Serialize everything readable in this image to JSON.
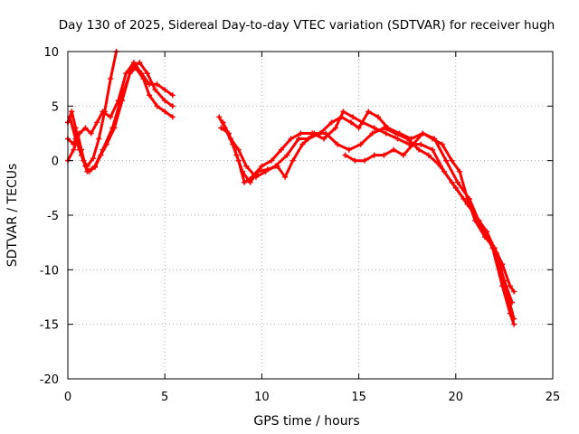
{
  "chart_data": {
    "type": "scatter",
    "title": "Day 130 of 2025, Sidereal Day-to-day VTEC variation (SDTVAR) for receiver hugh",
    "xlabel": "GPS time / hours",
    "ylabel": "SDTVAR / TECUs",
    "xlim": [
      0,
      25
    ],
    "ylim": [
      -20,
      10
    ],
    "x_ticks": [
      "0",
      "5",
      "10",
      "15",
      "20",
      "25"
    ],
    "y_ticks": [
      "10",
      "5",
      "0",
      "-5",
      "-10",
      "-15",
      "-20"
    ],
    "grid": true,
    "legend": "none",
    "series_color": "#ff0000",
    "series": [
      {
        "points": [
          [
            0.0,
            3.5
          ],
          [
            0.2,
            4.5
          ],
          [
            0.4,
            3.0
          ],
          [
            0.6,
            1.0
          ],
          [
            0.8,
            0.0
          ],
          [
            1.0,
            -0.5
          ],
          [
            1.3,
            0.2
          ],
          [
            1.6,
            2.0
          ],
          [
            1.9,
            4.5
          ],
          [
            2.2,
            7.5
          ],
          [
            2.5,
            10.0
          ]
        ]
      },
      {
        "points": [
          [
            0.0,
            2.0
          ],
          [
            0.3,
            1.5
          ],
          [
            0.5,
            2.5
          ],
          [
            0.7,
            1.0
          ],
          [
            0.9,
            -0.5
          ],
          [
            1.1,
            -1.0
          ],
          [
            1.4,
            -0.6
          ],
          [
            1.7,
            0.5
          ],
          [
            2.0,
            1.5
          ],
          [
            2.4,
            3.0
          ],
          [
            2.8,
            5.5
          ],
          [
            3.2,
            8.0
          ],
          [
            3.5,
            8.5
          ],
          [
            3.9,
            7.5
          ],
          [
            4.2,
            6.0
          ],
          [
            4.6,
            5.0
          ],
          [
            5.0,
            4.5
          ],
          [
            5.4,
            4.0
          ]
        ]
      },
      {
        "points": [
          [
            0.0,
            0.0
          ],
          [
            0.3,
            1.0
          ],
          [
            0.6,
            2.5
          ],
          [
            0.9,
            3.0
          ],
          [
            1.2,
            2.5
          ],
          [
            1.5,
            3.5
          ],
          [
            1.8,
            4.5
          ],
          [
            2.2,
            4.0
          ],
          [
            2.6,
            5.5
          ],
          [
            3.0,
            8.0
          ],
          [
            3.4,
            9.0
          ],
          [
            3.8,
            8.0
          ],
          [
            4.2,
            7.0
          ],
          [
            4.6,
            7.0
          ],
          [
            5.0,
            6.5
          ],
          [
            5.4,
            6.0
          ]
        ]
      },
      {
        "points": [
          [
            0.1,
            4.0
          ],
          [
            0.4,
            2.0
          ],
          [
            0.7,
            0.5
          ],
          [
            1.0,
            -1.0
          ],
          [
            1.4,
            -0.5
          ],
          [
            1.8,
            1.0
          ],
          [
            2.3,
            3.0
          ],
          [
            2.8,
            6.0
          ],
          [
            3.3,
            8.5
          ],
          [
            3.7,
            9.0
          ],
          [
            4.1,
            8.0
          ],
          [
            4.5,
            6.5
          ],
          [
            5.0,
            5.5
          ],
          [
            5.4,
            5.0
          ]
        ]
      },
      {
        "points": [
          [
            7.8,
            4.0
          ],
          [
            8.1,
            3.0
          ],
          [
            8.5,
            1.5
          ],
          [
            8.8,
            0.0
          ],
          [
            9.1,
            -2.0
          ],
          [
            9.5,
            -1.5
          ],
          [
            10.0,
            -0.5
          ],
          [
            10.5,
            0.0
          ],
          [
            11.0,
            1.0
          ],
          [
            11.5,
            2.0
          ],
          [
            12.0,
            2.5
          ],
          [
            12.6,
            2.5
          ],
          [
            13.2,
            2.0
          ],
          [
            13.8,
            3.0
          ],
          [
            14.2,
            4.5
          ],
          [
            14.7,
            4.0
          ],
          [
            15.2,
            3.5
          ],
          [
            15.8,
            3.0
          ],
          [
            16.4,
            2.5
          ],
          [
            17.0,
            2.0
          ],
          [
            17.6,
            1.5
          ],
          [
            18.2,
            1.5
          ],
          [
            18.8,
            1.0
          ],
          [
            19.4,
            -1.0
          ],
          [
            20.0,
            -2.5
          ],
          [
            20.6,
            -4.0
          ],
          [
            21.2,
            -5.5
          ],
          [
            21.8,
            -7.5
          ],
          [
            22.3,
            -10.0
          ],
          [
            22.7,
            -12.5
          ],
          [
            23.0,
            -14.5
          ]
        ]
      },
      {
        "points": [
          [
            7.9,
            3.0
          ],
          [
            8.3,
            2.5
          ],
          [
            8.7,
            0.5
          ],
          [
            9.0,
            -1.0
          ],
          [
            9.4,
            -2.0
          ],
          [
            9.8,
            -1.0
          ],
          [
            10.3,
            -0.8
          ],
          [
            10.8,
            -0.5
          ],
          [
            11.2,
            -1.5
          ],
          [
            11.6,
            0.0
          ],
          [
            12.1,
            1.5
          ],
          [
            12.7,
            2.5
          ],
          [
            13.3,
            2.5
          ],
          [
            13.9,
            1.5
          ],
          [
            14.5,
            1.0
          ],
          [
            15.1,
            1.5
          ],
          [
            15.7,
            2.5
          ],
          [
            16.3,
            3.0
          ],
          [
            16.9,
            2.5
          ],
          [
            17.5,
            2.0
          ],
          [
            18.1,
            1.0
          ],
          [
            18.6,
            0.5
          ],
          [
            19.2,
            -0.5
          ],
          [
            19.8,
            -2.0
          ],
          [
            20.4,
            -3.5
          ],
          [
            21.0,
            -5.0
          ],
          [
            21.6,
            -6.5
          ],
          [
            22.1,
            -8.5
          ],
          [
            22.5,
            -11.0
          ],
          [
            22.9,
            -13.0
          ]
        ]
      },
      {
        "points": [
          [
            8.0,
            3.5
          ],
          [
            8.4,
            2.0
          ],
          [
            8.8,
            1.0
          ],
          [
            9.2,
            -0.5
          ],
          [
            9.7,
            -1.5
          ],
          [
            10.2,
            -1.0
          ],
          [
            10.7,
            -0.5
          ],
          [
            11.3,
            0.5
          ],
          [
            11.9,
            2.0
          ],
          [
            12.4,
            2.0
          ],
          [
            13.0,
            2.5
          ],
          [
            13.6,
            3.5
          ],
          [
            14.1,
            4.0
          ],
          [
            14.6,
            3.5
          ],
          [
            15.0,
            3.0
          ],
          [
            15.5,
            4.5
          ],
          [
            16.0,
            4.0
          ],
          [
            16.5,
            3.0
          ],
          [
            17.1,
            2.5
          ],
          [
            17.7,
            2.0
          ],
          [
            18.3,
            2.5
          ],
          [
            18.9,
            2.0
          ],
          [
            19.5,
            0.0
          ],
          [
            20.1,
            -2.0
          ],
          [
            20.7,
            -3.5
          ],
          [
            21.3,
            -6.0
          ],
          [
            21.9,
            -8.0
          ],
          [
            22.4,
            -11.5
          ],
          [
            22.8,
            -14.0
          ],
          [
            23.0,
            -15.0
          ]
        ]
      },
      {
        "points": [
          [
            14.3,
            0.5
          ],
          [
            14.8,
            0.0
          ],
          [
            15.3,
            0.0
          ],
          [
            15.8,
            0.5
          ],
          [
            16.3,
            0.5
          ],
          [
            16.8,
            1.0
          ],
          [
            17.3,
            0.5
          ],
          [
            17.8,
            1.5
          ],
          [
            18.3,
            2.5
          ],
          [
            18.8,
            2.0
          ],
          [
            19.3,
            1.5
          ],
          [
            19.8,
            0.0
          ],
          [
            20.2,
            -1.0
          ],
          [
            20.6,
            -3.5
          ],
          [
            21.0,
            -5.5
          ],
          [
            21.5,
            -7.0
          ],
          [
            22.0,
            -8.0
          ],
          [
            22.4,
            -9.5
          ],
          [
            22.8,
            -11.5
          ],
          [
            23.0,
            -12.0
          ]
        ]
      }
    ]
  }
}
